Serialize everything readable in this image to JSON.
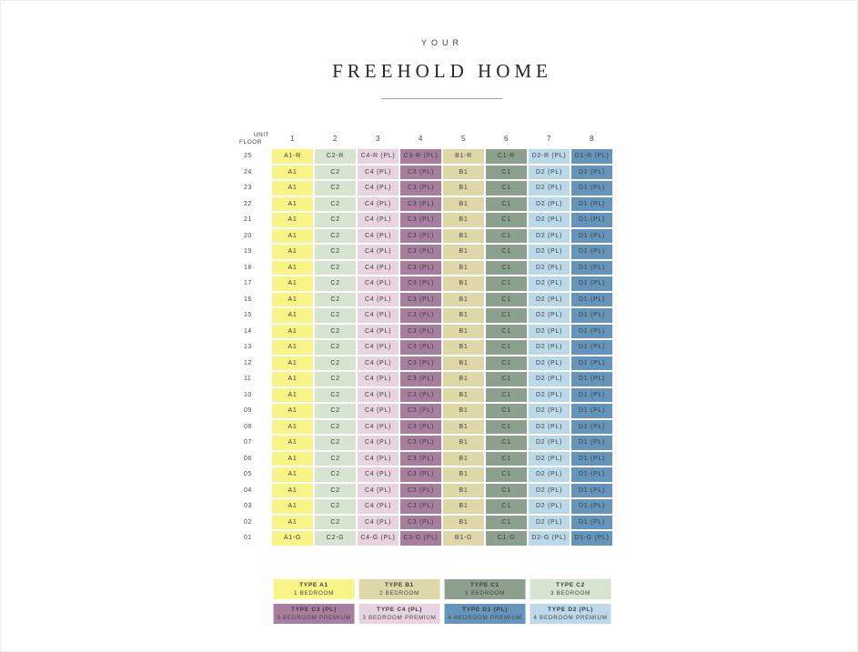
{
  "header": {
    "eyebrow": "YOUR",
    "title": "FREEHOLD HOME"
  },
  "colors": {
    "A1": "#f8f487",
    "B1": "#ded8a9",
    "C1": "#8ba18e",
    "C2": "#d6e4d0",
    "C3": "#a87e9e",
    "C4": "#e8d3e1",
    "D1": "#6595ba",
    "D2": "#bcd9ea",
    "cell_text": "#3d3d40"
  },
  "chart_data": {
    "type": "table",
    "title": "YOUR FREEHOLD HOME",
    "x_header": "UNIT",
    "y_header": "FLOOR",
    "columns": [
      "1",
      "2",
      "3",
      "4",
      "5",
      "6",
      "7",
      "8"
    ],
    "column_types": [
      "A1",
      "C2",
      "C4",
      "C3",
      "B1",
      "C1",
      "D2",
      "D1"
    ],
    "rows": [
      {
        "floor": "25",
        "cells": [
          "A1-R",
          "C2-R",
          "C4-R (PL)",
          "C3-R (PL)",
          "B1-R",
          "C1-R",
          "D2-R (PL)",
          "D1-R (PL)"
        ]
      },
      {
        "floor": "24",
        "cells": [
          "A1",
          "C2",
          "C4 (PL)",
          "C3 (PL)",
          "B1",
          "C1",
          "D2 (PL)",
          "D1 (PL)"
        ]
      },
      {
        "floor": "23",
        "cells": [
          "A1",
          "C2",
          "C4 (PL)",
          "C3 (PL)",
          "B1",
          "C1",
          "D2 (PL)",
          "D1 (PL)"
        ]
      },
      {
        "floor": "22",
        "cells": [
          "A1",
          "C2",
          "C4 (PL)",
          "C3 (PL)",
          "B1",
          "C1",
          "D2 (PL)",
          "D1 (PL)"
        ]
      },
      {
        "floor": "21",
        "cells": [
          "A1",
          "C2",
          "C4 (PL)",
          "C3 (PL)",
          "B1",
          "C1",
          "D2 (PL)",
          "D1 (PL)"
        ]
      },
      {
        "floor": "20",
        "cells": [
          "A1",
          "C2",
          "C4 (PL)",
          "C3 (PL)",
          "B1",
          "C1",
          "D2 (PL)",
          "D1 (PL)"
        ]
      },
      {
        "floor": "19",
        "cells": [
          "A1",
          "C2",
          "C4 (PL)",
          "C3 (PL)",
          "B1",
          "C1",
          "D2 (PL)",
          "D1 (PL)"
        ]
      },
      {
        "floor": "18",
        "cells": [
          "A1",
          "C2",
          "C4 (PL)",
          "C3 (PL)",
          "B1",
          "C1",
          "D2 (PL)",
          "D1 (PL)"
        ]
      },
      {
        "floor": "17",
        "cells": [
          "A1",
          "C2",
          "C4 (PL)",
          "C3 (PL)",
          "B1",
          "C1",
          "D2 (PL)",
          "D1 (PL)"
        ]
      },
      {
        "floor": "16",
        "cells": [
          "A1",
          "C2",
          "C4 (PL)",
          "C3 (PL)",
          "B1",
          "C1",
          "D2 (PL)",
          "D1 (PL)"
        ]
      },
      {
        "floor": "15",
        "cells": [
          "A1",
          "C2",
          "C4 (PL)",
          "C3 (PL)",
          "B1",
          "C1",
          "D2 (PL)",
          "D1 (PL)"
        ]
      },
      {
        "floor": "14",
        "cells": [
          "A1",
          "C2",
          "C4 (PL)",
          "C3 (PL)",
          "B1",
          "C1",
          "D2 (PL)",
          "D1 (PL)"
        ]
      },
      {
        "floor": "13",
        "cells": [
          "A1",
          "C2",
          "C4 (PL)",
          "C3 (PL)",
          "B1",
          "C1",
          "D2 (PL)",
          "D1 (PL)"
        ]
      },
      {
        "floor": "12",
        "cells": [
          "A1",
          "C2",
          "C4 (PL)",
          "C3 (PL)",
          "B1",
          "C1",
          "D2 (PL)",
          "D1 (PL)"
        ]
      },
      {
        "floor": "11",
        "cells": [
          "A1",
          "C2",
          "C4 (PL)",
          "C3 (PL)",
          "B1",
          "C1",
          "D2 (PL)",
          "D1 (PL)"
        ]
      },
      {
        "floor": "10",
        "cells": [
          "A1",
          "C2",
          "C4 (PL)",
          "C3 (PL)",
          "B1",
          "C1",
          "D2 (PL)",
          "D1 (PL)"
        ]
      },
      {
        "floor": "09",
        "cells": [
          "A1",
          "C2",
          "C4 (PL)",
          "C3 (PL)",
          "B1",
          "C1",
          "D2 (PL)",
          "D1 (PL)"
        ]
      },
      {
        "floor": "08",
        "cells": [
          "A1",
          "C2",
          "C4 (PL)",
          "C3 (PL)",
          "B1",
          "C1",
          "D2 (PL)",
          "D1 (PL)"
        ]
      },
      {
        "floor": "07",
        "cells": [
          "A1",
          "C2",
          "C4 (PL)",
          "C3 (PL)",
          "B1",
          "C1",
          "D2 (PL)",
          "D1 (PL)"
        ]
      },
      {
        "floor": "06",
        "cells": [
          "A1",
          "C2",
          "C4 (PL)",
          "C3 (PL)",
          "B1",
          "C1",
          "D2 (PL)",
          "D1 (PL)"
        ]
      },
      {
        "floor": "05",
        "cells": [
          "A1",
          "C2",
          "C4 (PL)",
          "C3 (PL)",
          "B1",
          "C1",
          "D2 (PL)",
          "D1 (PL)"
        ]
      },
      {
        "floor": "04",
        "cells": [
          "A1",
          "C2",
          "C4 (PL)",
          "C3 (PL)",
          "B1",
          "C1",
          "D2 (PL)",
          "D1 (PL)"
        ]
      },
      {
        "floor": "03",
        "cells": [
          "A1",
          "C2",
          "C4 (PL)",
          "C3 (PL)",
          "B1",
          "C1",
          "D2 (PL)",
          "D1 (PL)"
        ]
      },
      {
        "floor": "02",
        "cells": [
          "A1",
          "C2",
          "C4 (PL)",
          "C3 (PL)",
          "B1",
          "C1",
          "D2 (PL)",
          "D1 (PL)"
        ]
      },
      {
        "floor": "01",
        "cells": [
          "A1-G",
          "C2-G",
          "C4-G (PL)",
          "C3-G (PL)",
          "B1-G",
          "C1-G",
          "D2-G (PL)",
          "D1-G (PL)"
        ]
      }
    ]
  },
  "legend": [
    {
      "type_label": "TYPE A1",
      "desc": "1 BEDROOM",
      "color_key": "A1"
    },
    {
      "type_label": "TYPE B1",
      "desc": "2 BEDROOM",
      "color_key": "B1"
    },
    {
      "type_label": "TYPE C1",
      "desc": "3 BEDROOM",
      "color_key": "C1"
    },
    {
      "type_label": "TYPE C2",
      "desc": "3 BEDROOM",
      "color_key": "C2"
    },
    {
      "type_label": "TYPE C3 (PL)",
      "desc": "3 BEDROOM PREMIUM",
      "color_key": "C3"
    },
    {
      "type_label": "TYPE C4 (PL)",
      "desc": "3 BEDROOM PREMIUM",
      "color_key": "C4"
    },
    {
      "type_label": "TYPE D1 (PL)",
      "desc": "4 BEDROOM PREMIUM",
      "color_key": "D1"
    },
    {
      "type_label": "TYPE D2 (PL)",
      "desc": "4 BEDROOM PREMIUM",
      "color_key": "D2"
    }
  ]
}
